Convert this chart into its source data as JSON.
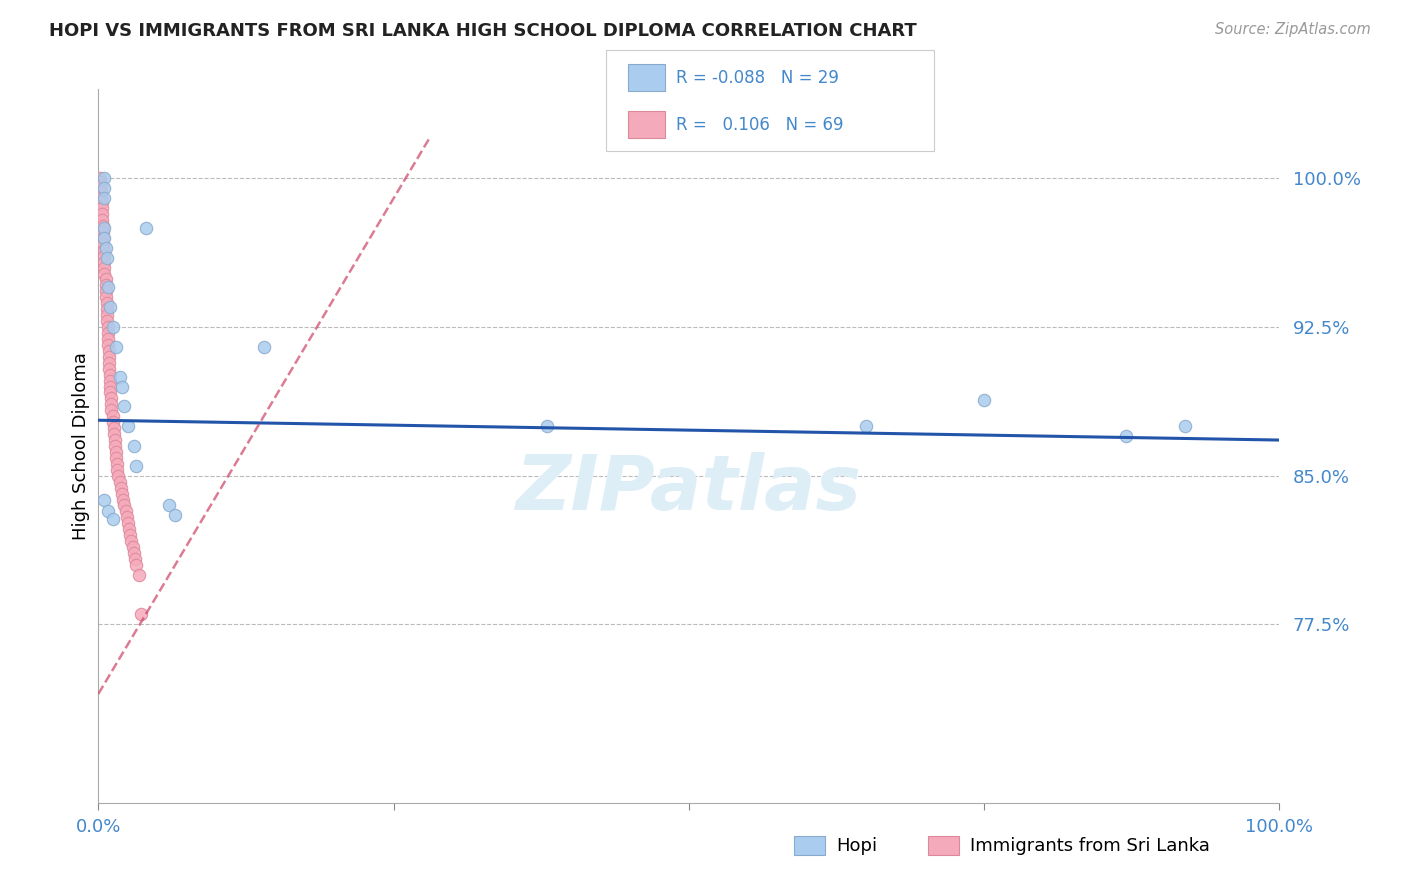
{
  "title": "HOPI VS IMMIGRANTS FROM SRI LANKA HIGH SCHOOL DIPLOMA CORRELATION CHART",
  "source": "Source: ZipAtlas.com",
  "ylabel": "High School Diploma",
  "legend_hopi_label": "Hopi",
  "legend_srilanka_label": "Immigrants from Sri Lanka",
  "hopi_R": "-0.088",
  "hopi_N": "29",
  "srilanka_R": "0.106",
  "srilanka_N": "69",
  "yticks": [
    0.775,
    0.85,
    0.925,
    1.0
  ],
  "ytick_labels": [
    "77.5%",
    "85.0%",
    "92.5%",
    "100.0%"
  ],
  "xmin": 0.0,
  "xmax": 1.0,
  "ymin": 0.685,
  "ymax": 1.045,
  "hopi_color": "#aaccee",
  "hopi_edge_color": "#88aacc",
  "srilanka_color": "#f5aabb",
  "srilanka_edge_color": "#dd8899",
  "trend_hopi_color": "#2255aa",
  "trend_srilanka_color": "#cc4466",
  "watermark_color": "#ddeef7",
  "background_color": "#ffffff",
  "grid_color": "#bbbbbb",
  "title_color": "#222222",
  "axis_label_color": "#4488cc",
  "hopi_scatter_x": [
    0.005,
    0.005,
    0.005,
    0.005,
    0.005,
    0.006,
    0.007,
    0.008,
    0.01,
    0.012,
    0.015,
    0.018,
    0.02,
    0.022,
    0.025,
    0.03,
    0.032,
    0.04,
    0.06,
    0.065,
    0.14,
    0.38,
    0.65,
    0.75,
    0.87,
    0.92,
    0.005,
    0.008,
    0.012
  ],
  "hopi_scatter_y": [
    1.0,
    0.995,
    0.99,
    0.975,
    0.97,
    0.965,
    0.96,
    0.945,
    0.935,
    0.925,
    0.915,
    0.9,
    0.895,
    0.885,
    0.875,
    0.865,
    0.855,
    0.975,
    0.835,
    0.83,
    0.915,
    0.875,
    0.875,
    0.888,
    0.87,
    0.875,
    0.838,
    0.832,
    0.828
  ],
  "srilanka_scatter_x": [
    0.001,
    0.001,
    0.002,
    0.002,
    0.002,
    0.003,
    0.003,
    0.003,
    0.003,
    0.004,
    0.004,
    0.004,
    0.004,
    0.005,
    0.005,
    0.005,
    0.005,
    0.005,
    0.006,
    0.006,
    0.006,
    0.006,
    0.007,
    0.007,
    0.007,
    0.007,
    0.008,
    0.008,
    0.008,
    0.008,
    0.009,
    0.009,
    0.009,
    0.009,
    0.01,
    0.01,
    0.01,
    0.01,
    0.011,
    0.011,
    0.011,
    0.012,
    0.012,
    0.013,
    0.013,
    0.014,
    0.014,
    0.015,
    0.015,
    0.016,
    0.016,
    0.017,
    0.018,
    0.019,
    0.02,
    0.021,
    0.022,
    0.023,
    0.024,
    0.025,
    0.026,
    0.027,
    0.028,
    0.029,
    0.03,
    0.031,
    0.032,
    0.034,
    0.036
  ],
  "srilanka_scatter_y": [
    1.0,
    0.998,
    0.996,
    0.993,
    0.99,
    0.988,
    0.985,
    0.982,
    0.979,
    0.976,
    0.973,
    0.97,
    0.967,
    0.964,
    0.961,
    0.958,
    0.955,
    0.952,
    0.949,
    0.946,
    0.943,
    0.94,
    0.937,
    0.934,
    0.931,
    0.928,
    0.925,
    0.922,
    0.919,
    0.916,
    0.913,
    0.91,
    0.907,
    0.904,
    0.901,
    0.898,
    0.895,
    0.892,
    0.889,
    0.886,
    0.883,
    0.88,
    0.877,
    0.874,
    0.871,
    0.868,
    0.865,
    0.862,
    0.859,
    0.856,
    0.853,
    0.85,
    0.847,
    0.844,
    0.841,
    0.838,
    0.835,
    0.832,
    0.829,
    0.826,
    0.823,
    0.82,
    0.817,
    0.814,
    0.811,
    0.808,
    0.805,
    0.8,
    0.78
  ],
  "hopi_trend_x": [
    0.0,
    1.0
  ],
  "hopi_trend_y": [
    0.878,
    0.868
  ],
  "srilanka_trend_x": [
    0.0,
    0.28
  ],
  "srilanka_trend_y": [
    0.74,
    1.02
  ],
  "marker_size": 80
}
